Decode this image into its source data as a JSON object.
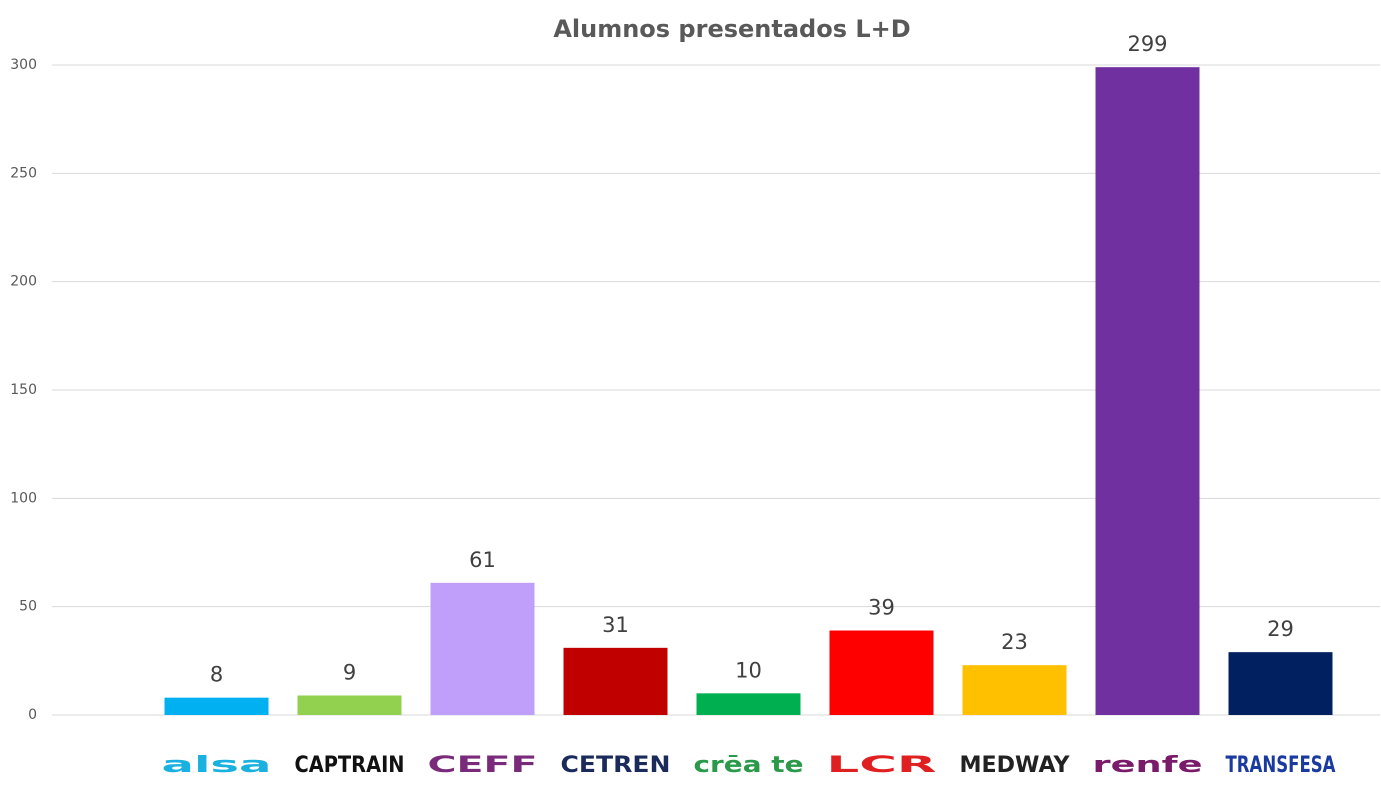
{
  "chart_data": {
    "type": "bar",
    "title": "Alumnos presentados L+D",
    "categories": [
      "alsa",
      "CAPTRAIN",
      "CEFF",
      "CETREN",
      "crēa te",
      "LCR",
      "MEDWAY",
      "renfe",
      "TRANSFESA"
    ],
    "values": [
      8,
      9,
      61,
      31,
      10,
      39,
      23,
      299,
      29
    ],
    "colors": [
      "#00b0f0",
      "#92d050",
      "#bf9ff9",
      "#c00000",
      "#00b050",
      "#ff0000",
      "#ffc000",
      "#7030a0",
      "#002060"
    ],
    "label_colors": [
      "#1ab0e0",
      "#111111",
      "#7a2a7a",
      "#1a2a5a",
      "#2a9a4a",
      "#e02020",
      "#222222",
      "#7a1a6a",
      "#1a3aa0"
    ],
    "ylim": [
      0,
      300
    ],
    "yticks": [
      0,
      50,
      100,
      150,
      200,
      250,
      300
    ],
    "grid": true
  }
}
